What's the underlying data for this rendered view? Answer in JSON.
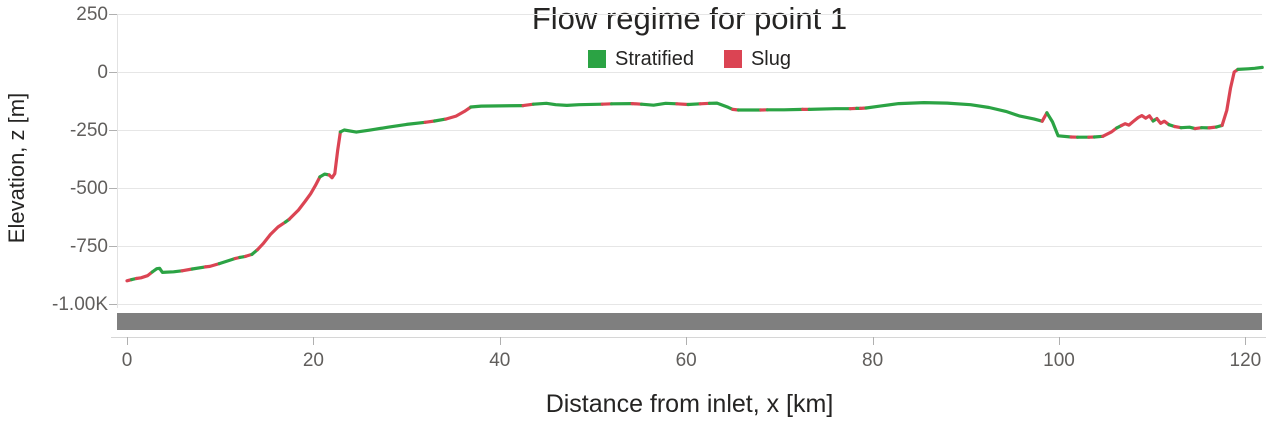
{
  "title": "Flow regime for point 1",
  "legend": {
    "items": [
      {
        "label": "Stratified",
        "color": "#2ba344"
      },
      {
        "label": "Slug",
        "color": "#db4453"
      }
    ]
  },
  "colors": {
    "stratified_green": "#2ba344",
    "slug_red": "#db4453",
    "text_dark": "#252423",
    "text_gray": "#605e5c",
    "gridline": "#e6e6e6",
    "scrollbar_gray": "#7f7f7f"
  },
  "chart_data": {
    "type": "line",
    "title": "Flow regime for point 1",
    "xlabel": "Distance from inlet, x [km]",
    "ylabel": "Elevation, z [m]",
    "xlim": [
      0,
      122
    ],
    "ylim": [
      -1000,
      250
    ],
    "grid": "horizontal",
    "legend_position": "top-center",
    "legend": [
      "Stratified",
      "Slug"
    ],
    "xticks": {
      "values": [
        0,
        20,
        40,
        60,
        80,
        100,
        120
      ],
      "labels": [
        "0",
        "20",
        "40",
        "60",
        "80",
        "100",
        "120"
      ]
    },
    "yticks": {
      "values": [
        250,
        0,
        -250,
        -500,
        -750,
        -1000
      ],
      "labels": [
        "250",
        "0",
        "-250",
        "-500",
        "-750",
        "-1.00K"
      ]
    },
    "series_note": "profile points are [distance_km, elevation_m, regime_index]; regime_index 0=Stratified(green) colors the segment starting at that point, 1=Slug(red)",
    "profile": [
      [
        0.0,
        -900,
        1
      ],
      [
        0.5,
        -895,
        0
      ],
      [
        1.0,
        -890,
        1
      ],
      [
        1.5,
        -887,
        1
      ],
      [
        2.2,
        -878,
        1
      ],
      [
        2.7,
        -862,
        0
      ],
      [
        3.2,
        -848,
        0
      ],
      [
        3.5,
        -846,
        0
      ],
      [
        3.8,
        -864,
        0
      ],
      [
        5.0,
        -861,
        0
      ],
      [
        5.9,
        -857,
        1
      ],
      [
        7.0,
        -849,
        0
      ],
      [
        8.4,
        -840,
        1
      ],
      [
        8.9,
        -838,
        1
      ],
      [
        9.9,
        -826,
        0
      ],
      [
        10.9,
        -813,
        0
      ],
      [
        11.6,
        -804,
        1
      ],
      [
        12.1,
        -799,
        0
      ],
      [
        12.7,
        -795,
        1
      ],
      [
        13.4,
        -786,
        0
      ],
      [
        14.0,
        -766,
        1
      ],
      [
        14.6,
        -740,
        1
      ],
      [
        15.4,
        -700,
        1
      ],
      [
        16.2,
        -668,
        1
      ],
      [
        17.0,
        -647,
        0
      ],
      [
        17.4,
        -635,
        1
      ],
      [
        18.4,
        -595,
        1
      ],
      [
        19.1,
        -558,
        1
      ],
      [
        19.7,
        -525,
        1
      ],
      [
        20.2,
        -490,
        1
      ],
      [
        20.7,
        -452,
        0
      ],
      [
        21.2,
        -440,
        0
      ],
      [
        21.7,
        -444,
        1
      ],
      [
        22.0,
        -456,
        1
      ],
      [
        22.3,
        -438,
        1
      ],
      [
        22.6,
        -340,
        1
      ],
      [
        22.9,
        -258,
        0
      ],
      [
        23.3,
        -250,
        0
      ],
      [
        24.6,
        -259,
        0
      ],
      [
        26.0,
        -251,
        0
      ],
      [
        28.0,
        -238,
        0
      ],
      [
        30.0,
        -226,
        0
      ],
      [
        32.0,
        -217,
        1
      ],
      [
        33.0,
        -211,
        0
      ],
      [
        34.2,
        -203,
        1
      ],
      [
        35.3,
        -190,
        1
      ],
      [
        36.2,
        -170,
        1
      ],
      [
        36.9,
        -151,
        0
      ],
      [
        38.0,
        -147,
        0
      ],
      [
        42.5,
        -145,
        1
      ],
      [
        43.6,
        -139,
        0
      ],
      [
        45.0,
        -135,
        0
      ],
      [
        46.0,
        -141,
        0
      ],
      [
        47.2,
        -144,
        0
      ],
      [
        48.5,
        -141,
        0
      ],
      [
        51.0,
        -139,
        1
      ],
      [
        52.0,
        -137,
        0
      ],
      [
        54.2,
        -136,
        1
      ],
      [
        55.2,
        -139,
        0
      ],
      [
        56.5,
        -143,
        0
      ],
      [
        57.8,
        -135,
        0
      ],
      [
        59.0,
        -137,
        1
      ],
      [
        60.2,
        -140,
        0
      ],
      [
        61.5,
        -137,
        1
      ],
      [
        62.5,
        -135,
        0
      ],
      [
        63.3,
        -134,
        0
      ],
      [
        64.5,
        -152,
        0
      ],
      [
        65.0,
        -161,
        1
      ],
      [
        65.6,
        -164,
        0
      ],
      [
        68.0,
        -164,
        1
      ],
      [
        68.7,
        -163,
        0
      ],
      [
        70.5,
        -163,
        0
      ],
      [
        72.5,
        -161,
        1
      ],
      [
        73.2,
        -161,
        0
      ],
      [
        76.0,
        -158,
        0
      ],
      [
        77.6,
        -158,
        1
      ],
      [
        78.3,
        -157,
        0
      ],
      [
        78.7,
        -157,
        1
      ],
      [
        79.3,
        -155,
        0
      ],
      [
        80.8,
        -147,
        0
      ],
      [
        82.8,
        -136,
        0
      ],
      [
        85.5,
        -132,
        0
      ],
      [
        88.0,
        -134,
        0
      ],
      [
        90.5,
        -141,
        0
      ],
      [
        92.5,
        -153,
        0
      ],
      [
        94.3,
        -170,
        0
      ],
      [
        95.8,
        -190,
        0
      ],
      [
        97.3,
        -202,
        0
      ],
      [
        98.2,
        -212,
        1
      ],
      [
        98.7,
        -176,
        0
      ],
      [
        99.3,
        -215,
        0
      ],
      [
        99.9,
        -275,
        0
      ],
      [
        101.3,
        -280,
        1
      ],
      [
        102.0,
        -281,
        0
      ],
      [
        103.2,
        -281,
        1
      ],
      [
        103.8,
        -280,
        0
      ],
      [
        104.7,
        -277,
        1
      ],
      [
        105.6,
        -259,
        1
      ],
      [
        106.2,
        -241,
        0
      ],
      [
        106.7,
        -231,
        1
      ],
      [
        107.1,
        -223,
        1
      ],
      [
        107.5,
        -229,
        1
      ],
      [
        108.0,
        -212,
        1
      ],
      [
        108.5,
        -196,
        1
      ],
      [
        108.9,
        -188,
        1
      ],
      [
        109.3,
        -199,
        1
      ],
      [
        109.7,
        -189,
        1
      ],
      [
        110.1,
        -211,
        0
      ],
      [
        110.5,
        -201,
        1
      ],
      [
        110.9,
        -221,
        1
      ],
      [
        111.3,
        -212,
        1
      ],
      [
        111.8,
        -227,
        0
      ],
      [
        112.4,
        -235,
        1
      ],
      [
        113.1,
        -240,
        0
      ],
      [
        114.0,
        -238,
        0
      ],
      [
        114.6,
        -244,
        1
      ],
      [
        115.3,
        -240,
        0
      ],
      [
        116.1,
        -241,
        1
      ],
      [
        116.9,
        -237,
        0
      ],
      [
        117.5,
        -230,
        1
      ],
      [
        118.0,
        -165,
        1
      ],
      [
        118.4,
        -70,
        1
      ],
      [
        118.8,
        0,
        1
      ],
      [
        119.2,
        11,
        0
      ],
      [
        120.3,
        14,
        0
      ],
      [
        121.0,
        16,
        0
      ],
      [
        121.8,
        20,
        0
      ]
    ]
  }
}
